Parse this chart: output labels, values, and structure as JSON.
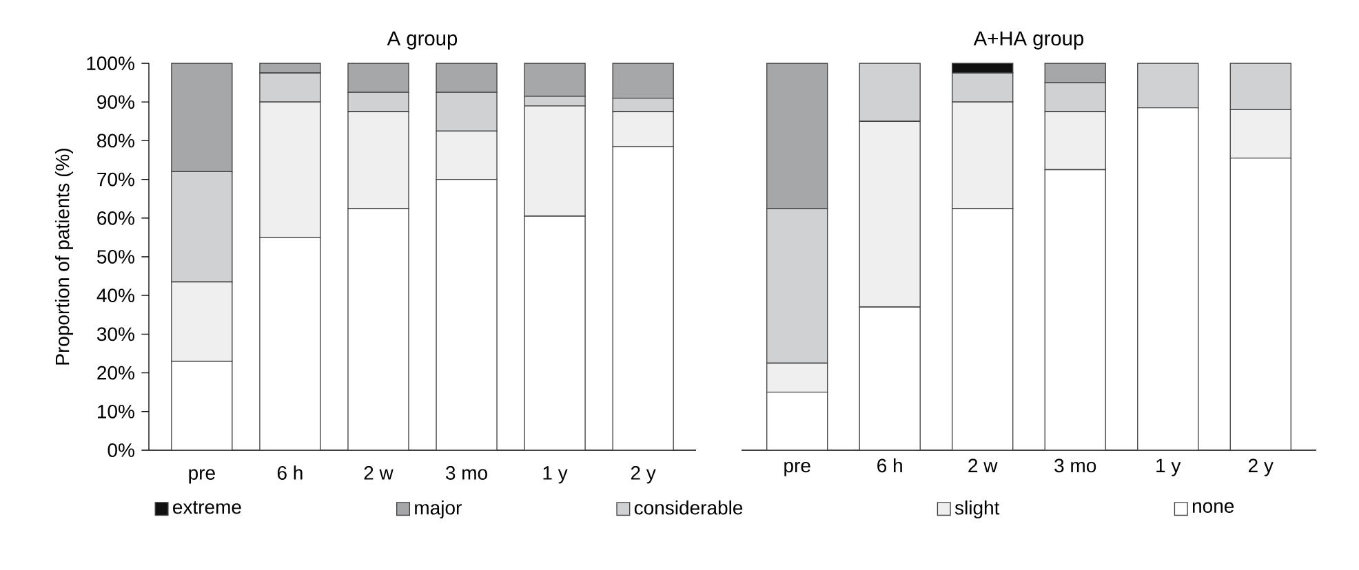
{
  "chart_data": [
    {
      "type": "bar",
      "stacked": true,
      "title": "A group",
      "ylabel": "Proportion of patients (%)",
      "categories": [
        "pre",
        "6 h",
        "2 w",
        "3 mo",
        "1 y",
        "2 y"
      ],
      "series": [
        {
          "color": "#ffffff",
          "values": [
            23,
            55,
            62.5,
            70,
            60.5,
            78.5
          ]
        },
        {
          "color": "#efefef",
          "values": [
            20.5,
            35,
            25,
            12.5,
            28.5,
            9
          ]
        },
        {
          "name": "considerable",
          "color": "#d0d1d3",
          "values": [
            28.5,
            7.5,
            5,
            10,
            2.5,
            3.5
          ]
        },
        {
          "name": "major",
          "color": "#a6a7a9",
          "values": [
            28,
            2.5,
            7.5,
            7.5,
            8.5,
            9
          ]
        },
        {
          "name": "extreme",
          "color": "#111111",
          "values": [
            0,
            0,
            0,
            0,
            0,
            0
          ]
        }
      ],
      "ylim": [
        0,
        100
      ],
      "yticks": [
        {
          "value": 0,
          "label": "0%"
        },
        {
          "value": 10,
          "label": "10%"
        },
        {
          "value": 20,
          "label": "20%"
        },
        {
          "value": 30,
          "label": "30%"
        },
        {
          "value": 40,
          "label": "40%"
        },
        {
          "value": 50,
          "label": "50%"
        },
        {
          "value": 60,
          "label": "60%"
        },
        {
          "value": 70,
          "label": "70%"
        },
        {
          "value": 80,
          "label": "80%"
        },
        {
          "value": 90,
          "label": "90%"
        },
        {
          "value": 100,
          "label": "100%"
        }
      ],
      "legend": "bottom"
    },
    {
      "type": "bar",
      "stacked": true,
      "title": "A+HA group",
      "categories": [
        "pre",
        "6 h",
        "2 w",
        "3 mo",
        "1 y",
        "2 y"
      ],
      "series": [
        {
          "name": "none",
          "color": "#ffffff",
          "values": [
            15,
            37,
            62.5,
            72.5,
            88.5,
            75.5
          ]
        },
        {
          "name": "slight",
          "color": "#efefef",
          "values": [
            7.5,
            48,
            27.5,
            15,
            0,
            12.5
          ]
        },
        {
          "color": "#d0d1d3",
          "values": [
            40,
            15,
            7.5,
            7.5,
            11.5,
            12
          ]
        },
        {
          "color": "#a6a7a9",
          "values": [
            37.5,
            0,
            0,
            5,
            0,
            0
          ]
        },
        {
          "color": "#111111",
          "values": [
            0,
            0,
            2.5,
            0,
            0,
            0
          ]
        }
      ],
      "ylim": [
        0,
        100
      ],
      "legend": "bottom",
      "tick_labels": "x"
    }
  ]
}
